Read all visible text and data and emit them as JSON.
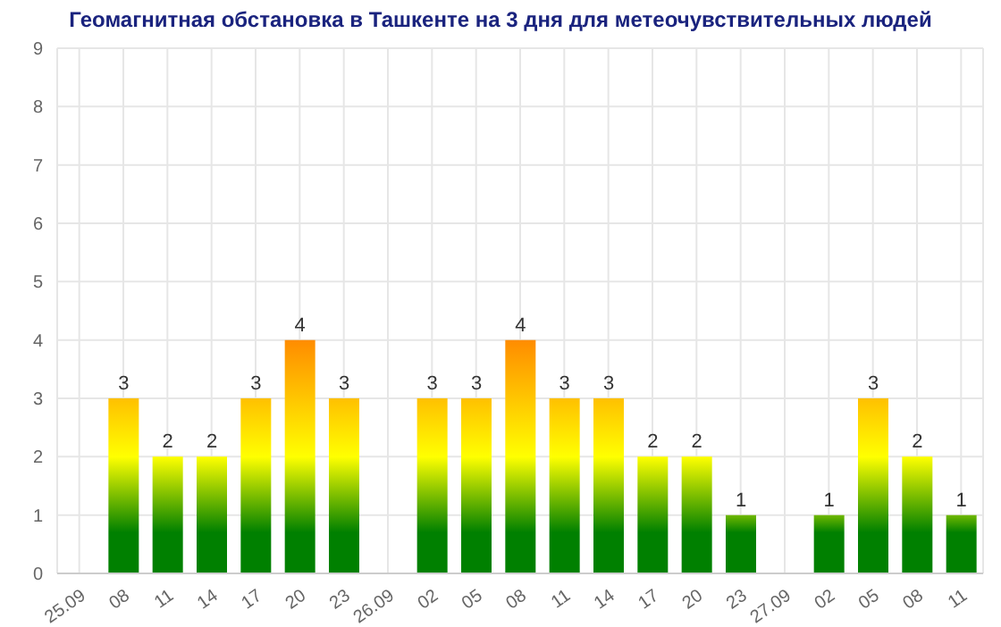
{
  "chart_data": {
    "type": "bar",
    "title": "Геомагнитная обстановка в Ташкенте на 3 дня для метеочувствительных людей",
    "categories": [
      "25.09",
      "08",
      "11",
      "14",
      "17",
      "20",
      "23",
      "26.09",
      "02",
      "05",
      "08",
      "11",
      "14",
      "17",
      "20",
      "23",
      "27.09",
      "02",
      "05",
      "08",
      "11"
    ],
    "values": [
      null,
      3,
      2,
      2,
      3,
      4,
      3,
      null,
      3,
      3,
      4,
      3,
      3,
      2,
      2,
      1,
      null,
      1,
      3,
      2,
      1
    ],
    "colors": [
      "#ffc000",
      "#ffc000",
      "#ffff00",
      "#ffff00",
      "#ffc000",
      "#ff8c00",
      "#ffc000",
      "#ffc000",
      "#ffc000",
      "#ffc000",
      "#ff8c00",
      "#ffc000",
      "#ffc000",
      "#ffff00",
      "#ffff00",
      "#70b800",
      "#ffc000",
      "#70b800",
      "#ffc000",
      "#ffff00",
      "#70b800"
    ],
    "ylim": [
      0,
      9
    ],
    "yticks": [
      0,
      1,
      2,
      3,
      4,
      5,
      6,
      7,
      8,
      9
    ],
    "grid": true,
    "data_labels": true
  }
}
